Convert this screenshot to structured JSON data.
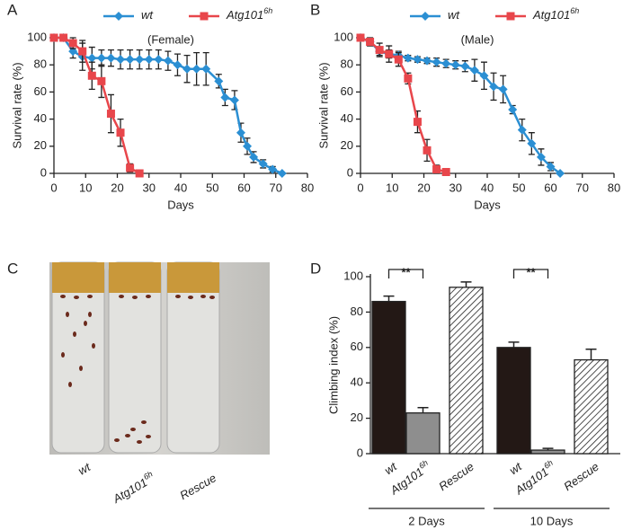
{
  "panel_labels": [
    "A",
    "B",
    "C",
    "D"
  ],
  "chart_data": [
    {
      "type": "line",
      "annotation": "(Female)",
      "xlabel": "Days",
      "ylabel": "Survival rate (%)",
      "xlim": [
        0,
        80
      ],
      "xticks": [
        0,
        10,
        20,
        30,
        40,
        50,
        60,
        70,
        80
      ],
      "ylim": [
        0,
        100
      ],
      "yticks": [
        0,
        20,
        40,
        60,
        80,
        100
      ],
      "series": [
        {
          "name": "wt",
          "color": "#2b8fd3",
          "marker": "diamond",
          "x": [
            0,
            3,
            6,
            9,
            12,
            15,
            18,
            21,
            24,
            27,
            30,
            33,
            36,
            39,
            42,
            45,
            48,
            52,
            54,
            57,
            59,
            61,
            63,
            66,
            69,
            72
          ],
          "values": [
            100,
            100,
            90,
            86,
            85,
            85,
            85,
            84,
            84,
            84,
            84,
            84,
            83,
            80,
            77,
            77,
            77,
            68,
            56,
            54,
            30,
            20,
            12,
            7,
            3,
            0
          ],
          "errors": [
            0,
            0,
            5,
            10,
            8,
            6,
            6,
            7,
            7,
            7,
            7,
            7,
            7,
            8,
            10,
            12,
            12,
            5,
            6,
            7,
            7,
            6,
            4,
            3,
            2,
            0
          ]
        },
        {
          "name": "Atg101",
          "name_sup": "6h",
          "color": "#e8464b",
          "marker": "square",
          "x": [
            0,
            3,
            6,
            9,
            12,
            15,
            18,
            21,
            24,
            27
          ],
          "values": [
            100,
            100,
            96,
            90,
            72,
            68,
            44,
            30,
            4,
            0
          ],
          "errors": [
            0,
            0,
            4,
            8,
            10,
            12,
            14,
            10,
            3,
            0
          ]
        }
      ]
    },
    {
      "type": "line",
      "annotation": "(Male)",
      "xlabel": "Days",
      "ylabel": "Survival rate (%)",
      "xlim": [
        0,
        80
      ],
      "xticks": [
        0,
        10,
        20,
        30,
        40,
        50,
        60,
        70,
        80
      ],
      "ylim": [
        0,
        100
      ],
      "yticks": [
        0,
        20,
        40,
        60,
        80,
        100
      ],
      "series": [
        {
          "name": "wt",
          "color": "#2b8fd3",
          "marker": "diamond",
          "x": [
            0,
            3,
            6,
            9,
            12,
            15,
            18,
            21,
            24,
            27,
            30,
            33,
            36,
            39,
            42,
            45,
            48,
            51,
            54,
            57,
            60,
            63
          ],
          "values": [
            100,
            97,
            90,
            88,
            87,
            85,
            84,
            83,
            82,
            81,
            80,
            79,
            76,
            72,
            64,
            62,
            47,
            32,
            22,
            12,
            5,
            0
          ],
          "errors": [
            0,
            2,
            3,
            3,
            3,
            2,
            2,
            2,
            3,
            3,
            3,
            4,
            8,
            10,
            10,
            10,
            3,
            8,
            8,
            6,
            3,
            0
          ]
        },
        {
          "name": "Atg101",
          "name_sup": "6h",
          "color": "#e8464b",
          "marker": "square",
          "x": [
            0,
            3,
            6,
            9,
            12,
            15,
            18,
            21,
            24,
            27
          ],
          "values": [
            100,
            97,
            91,
            88,
            84,
            70,
            38,
            17,
            3,
            1
          ],
          "errors": [
            0,
            3,
            5,
            6,
            5,
            4,
            8,
            8,
            3,
            1
          ]
        }
      ]
    },
    {
      "type": "bar",
      "ylabel": "Climbing index (%)",
      "ylim": [
        0,
        100
      ],
      "yticks": [
        0,
        20,
        40,
        60,
        80,
        100
      ],
      "categories": [
        "2 Days",
        "10 Days"
      ],
      "significance": [
        "**",
        "**"
      ],
      "series": [
        {
          "name": "wt",
          "color": "#231815",
          "values": [
            86,
            60
          ],
          "errors": [
            3,
            3
          ]
        },
        {
          "name": "Atg101",
          "name_sup": "6h",
          "color": "#8e8e8e",
          "values": [
            23,
            2
          ],
          "errors": [
            3,
            1
          ]
        },
        {
          "name": "Rescue",
          "color": "#ffffff",
          "hatch": true,
          "values": [
            94,
            53
          ],
          "errors": [
            3,
            6
          ]
        }
      ]
    }
  ],
  "photo": {
    "labels": [
      {
        "text": "wt"
      },
      {
        "text": "Atg101",
        "sup": "6h"
      },
      {
        "text": "Rescue"
      }
    ]
  }
}
